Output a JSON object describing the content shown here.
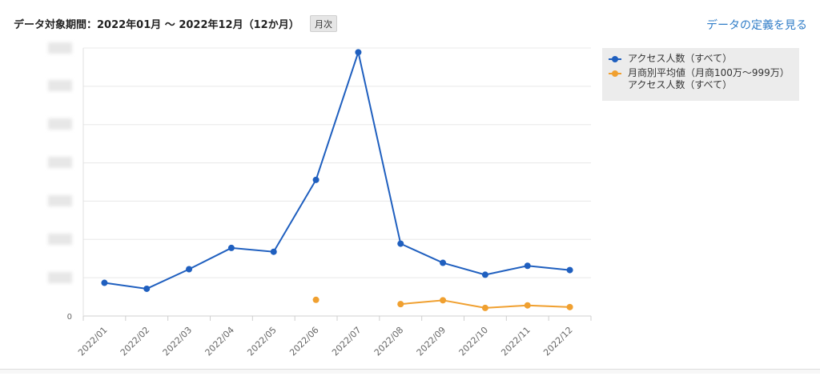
{
  "header": {
    "period_title": "データ対象期間：2022年01月 〜 2022年12月（12か月）",
    "period_badge": "月次",
    "definition_link": "データの定義を見る"
  },
  "colors": {
    "series_blue": "#1f5fbf",
    "series_orange": "#f0a030",
    "grid": "#e8e8e8",
    "legend_bg": "#ececec"
  },
  "chart_data": {
    "type": "line",
    "categories": [
      "2022/01",
      "2022/02",
      "2022/03",
      "2022/04",
      "2022/05",
      "2022/06",
      "2022/07",
      "2022/08",
      "2022/09",
      "2022/10",
      "2022/11",
      "2022/12"
    ],
    "y_tick_zero_label": "0",
    "y_gridline_count": 7,
    "y_tick_labels_obscured": true,
    "ylim": [
      0,
      6.3
    ],
    "series": [
      {
        "name": "アクセス人数（すべて）",
        "color": "#1f5fbf",
        "values": [
          0.78,
          0.64,
          1.1,
          1.6,
          1.51,
          3.2,
          6.2,
          1.7,
          1.25,
          0.97,
          1.18,
          1.08
        ]
      },
      {
        "name": "月商別平均値（月商100万〜999万）アクセス人数（すべて）",
        "color": "#f0a030",
        "values": [
          null,
          null,
          null,
          null,
          null,
          0.38,
          null,
          0.28,
          0.37,
          0.19,
          0.25,
          0.21
        ]
      }
    ],
    "legend_position": "top-right",
    "grid": true
  }
}
